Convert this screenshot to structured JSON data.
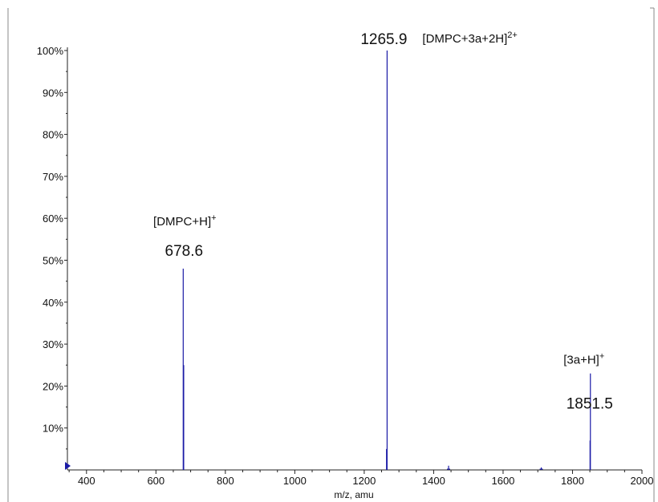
{
  "chart_data": {
    "type": "bar",
    "subtype": "mass-spectrum-sticks",
    "xlabel": "m/z, amu",
    "ylabel": "",
    "xlim": [
      345,
      2000
    ],
    "ylim": [
      0,
      100
    ],
    "x_ticks": [
      400,
      600,
      800,
      1000,
      1200,
      1400,
      1600,
      1800,
      2000
    ],
    "y_ticks": [
      10,
      20,
      30,
      40,
      50,
      60,
      70,
      80,
      90,
      100
    ],
    "y_tick_suffix": "%",
    "grid": false,
    "legend": "none",
    "line_color": "#1a1aa6",
    "series": [
      {
        "peaks": [
          {
            "x": 678.6,
            "y": 48
          },
          {
            "x": 680.0,
            "y": 25
          },
          {
            "x": 1264.3,
            "y": 5
          },
          {
            "x": 1265.9,
            "y": 100
          },
          {
            "x": 1443.0,
            "y": 1
          },
          {
            "x": 1710.0,
            "y": 0.6
          },
          {
            "x": 1850.5,
            "y": 7
          },
          {
            "x": 1851.5,
            "y": 23
          }
        ]
      }
    ],
    "annotations": [
      {
        "text": "1265.9",
        "x": 1265.9,
        "y": 100,
        "kind": "value"
      },
      {
        "text": "[DMPC+3a+2H]",
        "sup": "2+",
        "x": 1265.9,
        "y": 100,
        "kind": "ion"
      },
      {
        "text": "[DMPC+H]",
        "sup": "+",
        "x": 678.6,
        "y": 48,
        "kind": "ion"
      },
      {
        "text": "678.6",
        "x": 678.6,
        "y": 48,
        "kind": "value"
      },
      {
        "text": "[3a+H]",
        "sup": "+",
        "x": 1851.5,
        "y": 23,
        "kind": "ion"
      },
      {
        "text": "1851.5",
        "x": 1851.5,
        "y": 23,
        "kind": "value"
      }
    ]
  }
}
